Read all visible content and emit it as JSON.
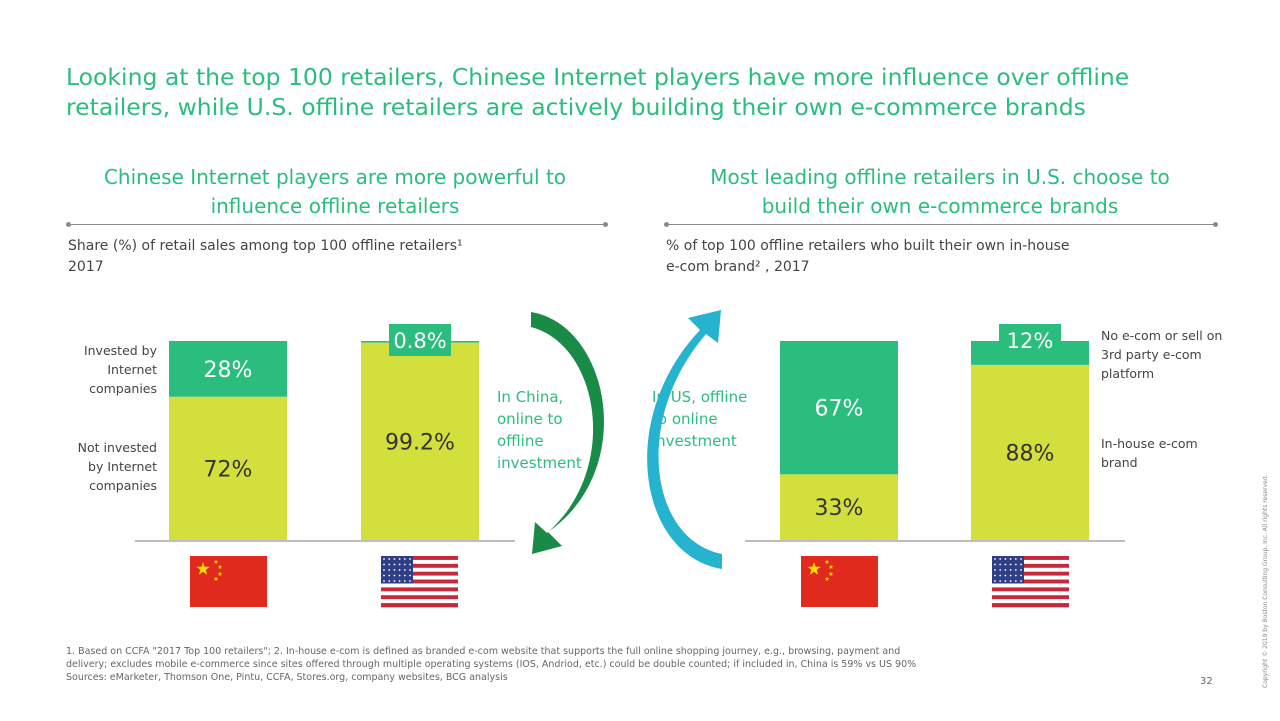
{
  "title": "Looking at the top 100 retailers, Chinese Internet players have more influence over offline retailers, while U.S. offline retailers are actively building their own e-commerce brands",
  "colors": {
    "green": "#2bbd7e",
    "lime": "#d2df3c",
    "dark_green_arrow": "#1a8a47",
    "teal_arrow": "#26b3cf",
    "text": "#333333"
  },
  "left_panel": {
    "heading": "Chinese Internet players are more powerful to influence offline retailers",
    "caption_line1": "Share (%) of retail sales among top 100 offline retailers¹",
    "caption_line2": "2017",
    "legend_top": "Invested by Internet companies",
    "legend_bottom": "Not invested by Internet companies"
  },
  "right_panel": {
    "heading": "Most leading offline retailers in U.S. choose to build their own e-commerce brands",
    "caption_line1": "% of top 100 offline retailers who built their own in-house",
    "caption_line2": "e-com brand² , 2017",
    "legend_top": "No e-com or sell on 3rd party e-com platform",
    "legend_bottom": "In-house e-com brand"
  },
  "middle": {
    "china_text": "In China, online to offline investment",
    "us_text": "In US, offline to online investment",
    "china_arrow_icon": "curved-arrow-down-icon",
    "us_arrow_icon": "curved-arrow-up-icon"
  },
  "chart_data": [
    {
      "type": "bar",
      "stacked": true,
      "categories": [
        "China",
        "US"
      ],
      "category_icons": [
        "china-flag-icon",
        "us-flag-icon"
      ],
      "series": [
        {
          "name": "Not invested by Internet companies",
          "values": [
            72,
            99.2
          ],
          "labels": [
            "72%",
            "99.2%"
          ]
        },
        {
          "name": "Invested by Internet companies",
          "values": [
            28,
            0.8
          ],
          "labels": [
            "28%",
            "0.8%"
          ]
        }
      ],
      "ylim": [
        0,
        100
      ]
    },
    {
      "type": "bar",
      "stacked": true,
      "categories": [
        "China",
        "US"
      ],
      "category_icons": [
        "china-flag-icon",
        "us-flag-icon"
      ],
      "series": [
        {
          "name": "In-house e-com brand",
          "values": [
            33,
            88
          ],
          "labels": [
            "33%",
            "88%"
          ]
        },
        {
          "name": "No e-com or sell on 3rd party e-com platform",
          "values": [
            67,
            12
          ],
          "labels": [
            "67%",
            "12%"
          ]
        }
      ],
      "ylim": [
        0,
        100
      ]
    }
  ],
  "footnotes": {
    "line1": "1. Based on CCFA \"2017 Top 100 retailers\"; 2. In-house e-com is defined as branded e-com website that supports the full online shopping journey, e.g., browsing, payment and",
    "line2": "delivery; excludes mobile e-commerce since sites offered through multiple operating systems (IOS, Andriod, etc.) could be double counted; if included in, China is 59% vs US 90%",
    "line3": "Sources: eMarketer, Thomson One, Pintu, CCFA, Stores.org, company websites, BCG analysis"
  },
  "page_number": "32",
  "copyright": "Copyright © 2019 by Boston Consulting Group, Inc. All rights reserved."
}
